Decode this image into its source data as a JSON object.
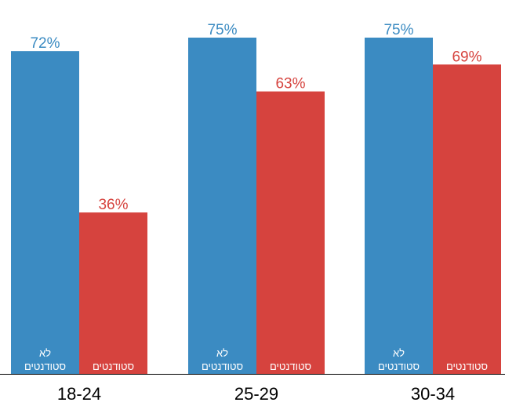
{
  "chart_data": {
    "type": "bar",
    "title": "׳",
    "categories": [
      "18-24",
      "25-29",
      "30-34"
    ],
    "ylim": [
      0,
      100
    ],
    "grid": false,
    "legend": "none",
    "series": [
      {
        "name": "לא סטודנטים",
        "label_lines": [
          "לא",
          "סטודנטים"
        ],
        "color": "#3b8bc2",
        "values": [
          72,
          75,
          75
        ],
        "value_labels": [
          "72%",
          "75%",
          "75%"
        ]
      },
      {
        "name": "סטודנטים",
        "label_lines": [
          "סטודנטים"
        ],
        "color": "#d6433e",
        "values": [
          36,
          63,
          69
        ],
        "value_labels": [
          "36%",
          "63%",
          "69%"
        ]
      }
    ]
  }
}
